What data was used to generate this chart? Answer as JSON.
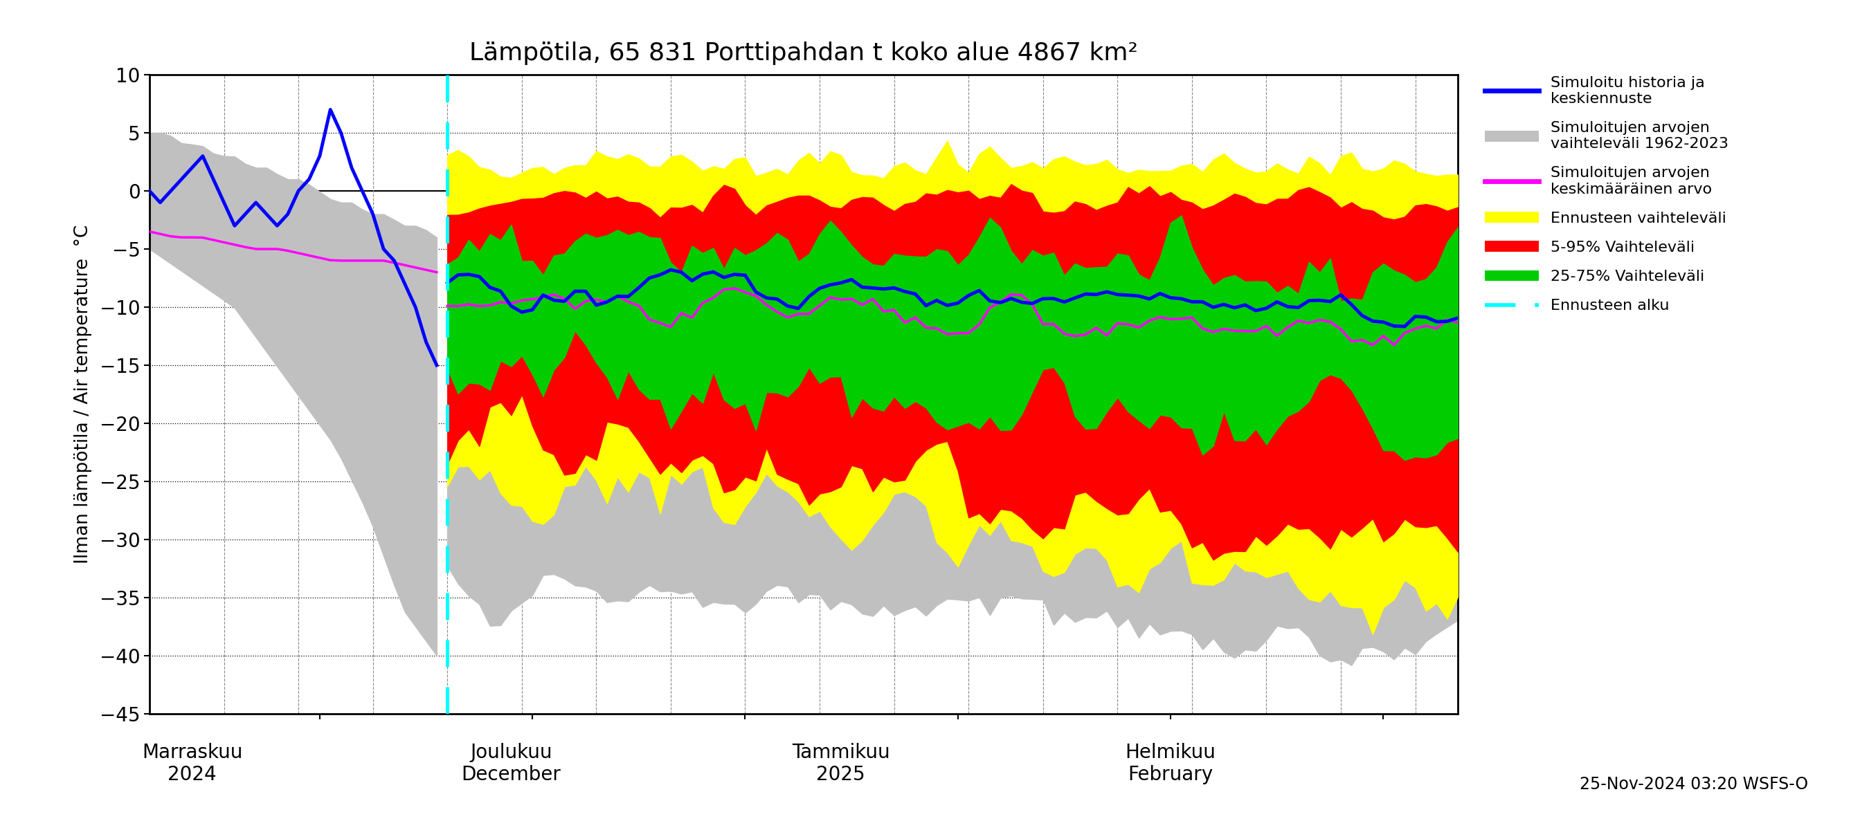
{
  "title": "Lämpötila, 65 831 Porttipahdan t koko alue 4867 km²",
  "ylabel_left": "Ilman lämpötila / Air temperature  °C",
  "ylim": [
    -45,
    10
  ],
  "yticks": [
    -45,
    -40,
    -35,
    -30,
    -25,
    -20,
    -15,
    -10,
    -5,
    0,
    5,
    10
  ],
  "background_color": "#ffffff",
  "footnote": "25-Nov-2024 03:20 WSFS-O",
  "legend_entries": [
    "Simuloitu historia ja\nkeskiennuste",
    "Simuloitujen arvojen\nvaihteleväli 1962-2023",
    "Simuloitujen arvojen\nkeskimääräinen arvo",
    "Ennusteen vaihteleväli",
    "5-95% Vaihteleväli",
    "25-75% Vaihteleväli",
    "Ennusteen alku"
  ],
  "legend_colors": [
    "#0000ff",
    "#c0c0c0",
    "#ff00ff",
    "#ffff00",
    "#ff0000",
    "#00ff00",
    "#00ffff"
  ],
  "seed": 42
}
